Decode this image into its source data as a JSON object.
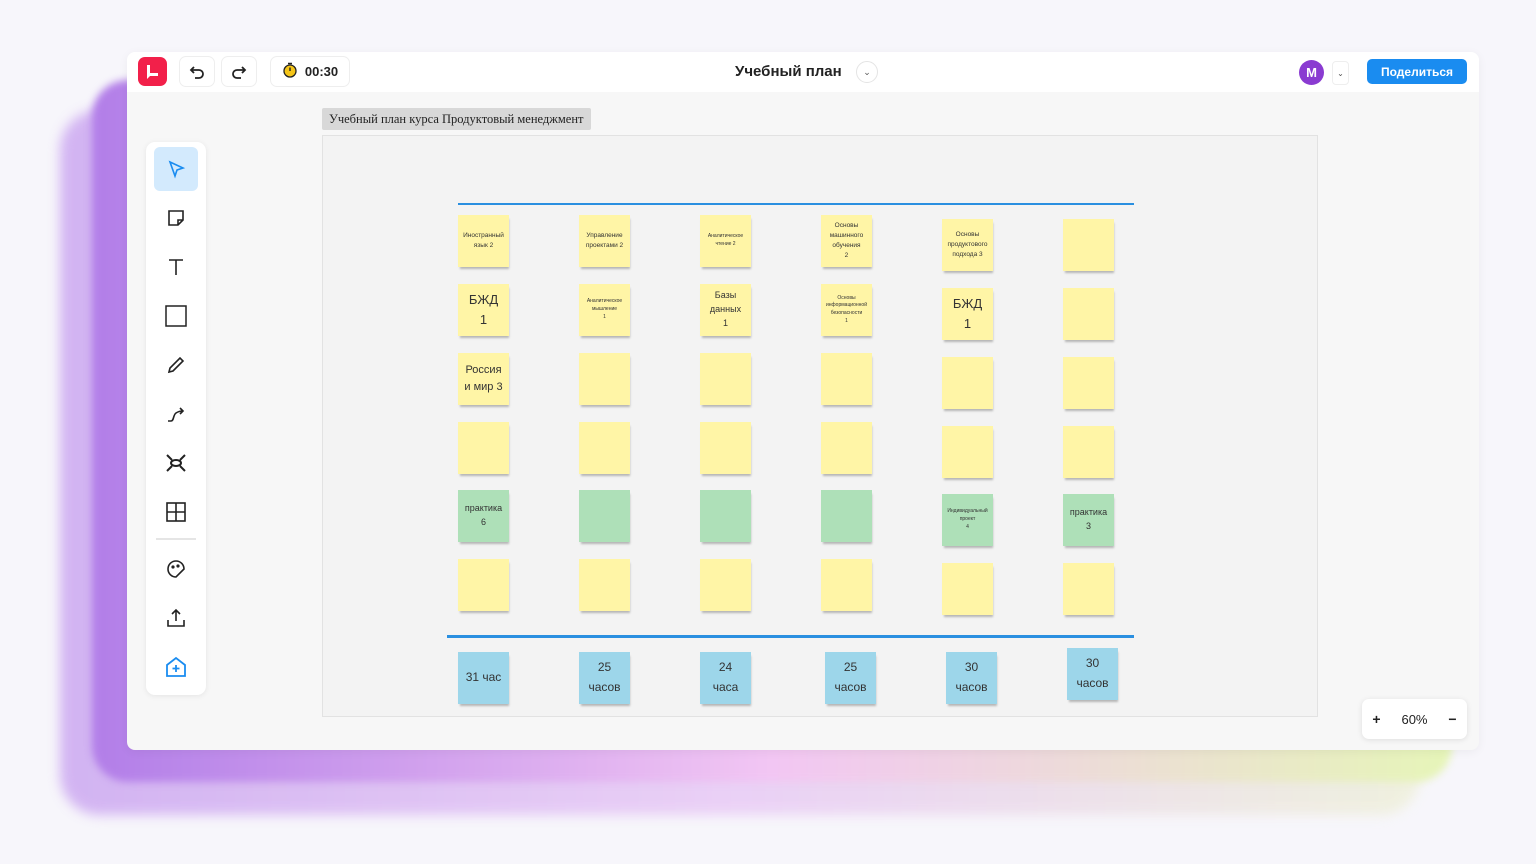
{
  "topbar": {
    "timer": "00:30",
    "title": "Учебный план",
    "avatar_initial": "M",
    "share_label": "Поделиться"
  },
  "frame_label": "Учебный план курса Продуктовый менеджмент",
  "zoom": {
    "plus": "+",
    "level": "60%",
    "minus": "−"
  },
  "colors": {
    "yellow": "#fff5a6",
    "green": "#aee0b8",
    "blue": "#9dd6ea",
    "accent": "#1a8cf0",
    "logo": "#f2204a"
  },
  "tools": [
    "select-icon",
    "sticky-note-icon",
    "text-icon",
    "rectangle-icon",
    "pencil-icon",
    "connector-icon",
    "mindmap-icon",
    "table-icon",
    "sticker-icon",
    "upload-icon",
    "add-board-icon"
  ],
  "grid": [
    [
      {
        "text": "Иностранный\nязык 2",
        "color": "yellow",
        "size": "xs"
      },
      {
        "text": "Управление\nпроектами 2",
        "color": "yellow",
        "size": "xs"
      },
      {
        "text": "Аналитическое\nчтение 2",
        "color": "yellow",
        "size": "xxs"
      },
      {
        "text": "Основы\nмашинного\nобучения\n2",
        "color": "yellow",
        "size": "xs"
      },
      {
        "text": "Основы\nпродуктового\nподхода 3",
        "color": "yellow",
        "size": "xs"
      },
      {
        "text": "",
        "color": "yellow"
      }
    ],
    [
      {
        "text": "БЖД\n1",
        "color": "yellow",
        "size": "l"
      },
      {
        "text": "Аналитическое\nмышление\n1",
        "color": "yellow",
        "size": "xxs"
      },
      {
        "text": "Базы\nданных\n1",
        "color": "yellow",
        "size": "s"
      },
      {
        "text": "Основы\nинформационной\nбезопасности\n1",
        "color": "yellow",
        "size": "xxs"
      },
      {
        "text": "БЖД\n1",
        "color": "yellow",
        "size": "l"
      },
      {
        "text": "",
        "color": "yellow"
      }
    ],
    [
      {
        "text": "Россия\nи мир 3",
        "color": "yellow",
        "size": "m"
      },
      {
        "text": "",
        "color": "yellow"
      },
      {
        "text": "",
        "color": "yellow"
      },
      {
        "text": "",
        "color": "yellow"
      },
      {
        "text": "",
        "color": "yellow"
      },
      {
        "text": "",
        "color": "yellow"
      }
    ],
    [
      {
        "text": "",
        "color": "yellow"
      },
      {
        "text": "",
        "color": "yellow"
      },
      {
        "text": "",
        "color": "yellow"
      },
      {
        "text": "",
        "color": "yellow"
      },
      {
        "text": "",
        "color": "yellow"
      },
      {
        "text": "",
        "color": "yellow"
      }
    ],
    [
      {
        "text": "практика\n6",
        "color": "green",
        "size": "s"
      },
      {
        "text": "",
        "color": "green"
      },
      {
        "text": "",
        "color": "green"
      },
      {
        "text": "",
        "color": "green"
      },
      {
        "text": "Индивидуальный\nпроект\n4",
        "color": "green",
        "size": "xxs"
      },
      {
        "text": "практика\n3",
        "color": "green",
        "size": "s"
      }
    ],
    [
      {
        "text": "",
        "color": "yellow"
      },
      {
        "text": "",
        "color": "yellow"
      },
      {
        "text": "",
        "color": "yellow"
      },
      {
        "text": "",
        "color": "yellow"
      },
      {
        "text": "",
        "color": "yellow"
      },
      {
        "text": "",
        "color": "yellow"
      }
    ]
  ],
  "hours": [
    "31 час",
    "25\nчасов",
    "24\nчаса",
    "25\nчасов",
    "30\nчасов",
    "30\nчасов"
  ]
}
